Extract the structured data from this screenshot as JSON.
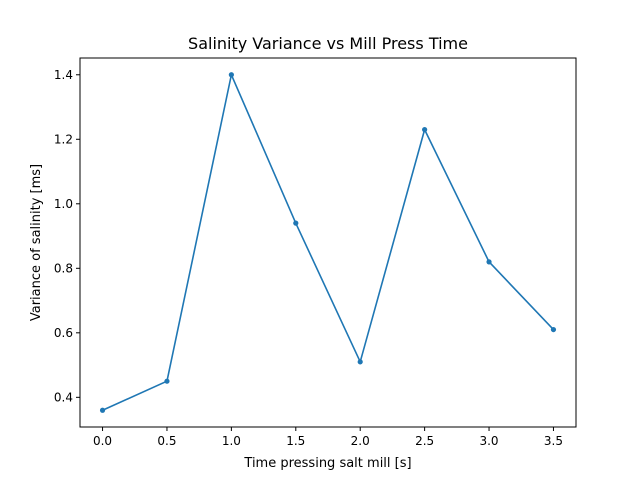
{
  "chart_data": {
    "type": "line",
    "title": "Salinity Variance vs Mill Press Time",
    "xlabel": "Time pressing salt mill [s]",
    "ylabel": "Variance of salinity [ms]",
    "xlim": [
      -0.175,
      3.675
    ],
    "ylim": [
      0.308,
      1.452
    ],
    "xticks": [
      0.0,
      0.5,
      1.0,
      1.5,
      2.0,
      2.5,
      3.0,
      3.5
    ],
    "xtick_labels": [
      "0.0",
      "0.5",
      "1.0",
      "1.5",
      "2.0",
      "2.5",
      "3.0",
      "3.5"
    ],
    "yticks": [
      0.4,
      0.6,
      0.8,
      1.0,
      1.2,
      1.4
    ],
    "ytick_labels": [
      "0.4",
      "0.6",
      "0.8",
      "1.0",
      "1.2",
      "1.4"
    ],
    "grid": false,
    "series": [
      {
        "x": [
          0.0,
          0.5,
          1.0,
          1.5,
          2.0,
          2.5,
          3.0,
          3.5
        ],
        "y": [
          0.36,
          0.45,
          1.4,
          0.94,
          0.51,
          1.23,
          0.82,
          0.61
        ],
        "color": "#1f77b4",
        "marker": "dot"
      }
    ]
  }
}
